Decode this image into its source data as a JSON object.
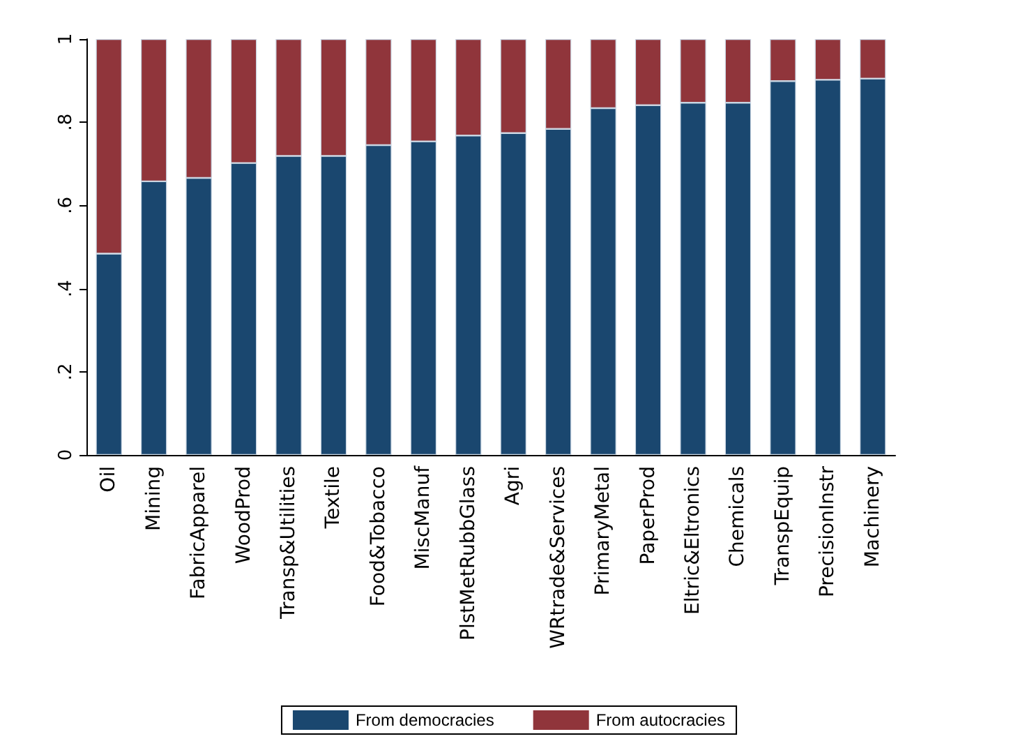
{
  "chart_data": {
    "type": "bar",
    "stacked": true,
    "categories": [
      "Oil",
      "Mining",
      "FabricApparel",
      "WoodProd",
      "Transp&Utilities",
      "Textile",
      "Food&Tobacco",
      "MiscManuf",
      "PlstMetRubbGlass",
      "Agri",
      "WRtrade&Services",
      "PrimaryMetal",
      "PaperProd",
      "Eltric&Eltronics",
      "Chemicals",
      "TranspEquip",
      "PrecisionInstr",
      "Machinery"
    ],
    "series": [
      {
        "name": "From democracies",
        "color": "#1a476f",
        "values": [
          0.484,
          0.658,
          0.666,
          0.702,
          0.719,
          0.719,
          0.745,
          0.754,
          0.768,
          0.774,
          0.784,
          0.834,
          0.841,
          0.847,
          0.847,
          0.899,
          0.902,
          0.905
        ]
      },
      {
        "name": "From autocracies",
        "color": "#90353b",
        "values": [
          0.516,
          0.342,
          0.334,
          0.298,
          0.281,
          0.281,
          0.255,
          0.246,
          0.232,
          0.226,
          0.216,
          0.166,
          0.159,
          0.153,
          0.153,
          0.101,
          0.098,
          0.095
        ]
      }
    ],
    "ylim": [
      0,
      1
    ],
    "yticks": [
      0,
      {
        "value": 0.2,
        "label": ".2"
      },
      {
        "value": 0.4,
        "label": ".4"
      },
      {
        "value": 0.6,
        "label": ".6"
      },
      {
        "value": 0.8,
        "label": ".8"
      },
      1
    ],
    "grid": false,
    "legend": "bottom"
  }
}
